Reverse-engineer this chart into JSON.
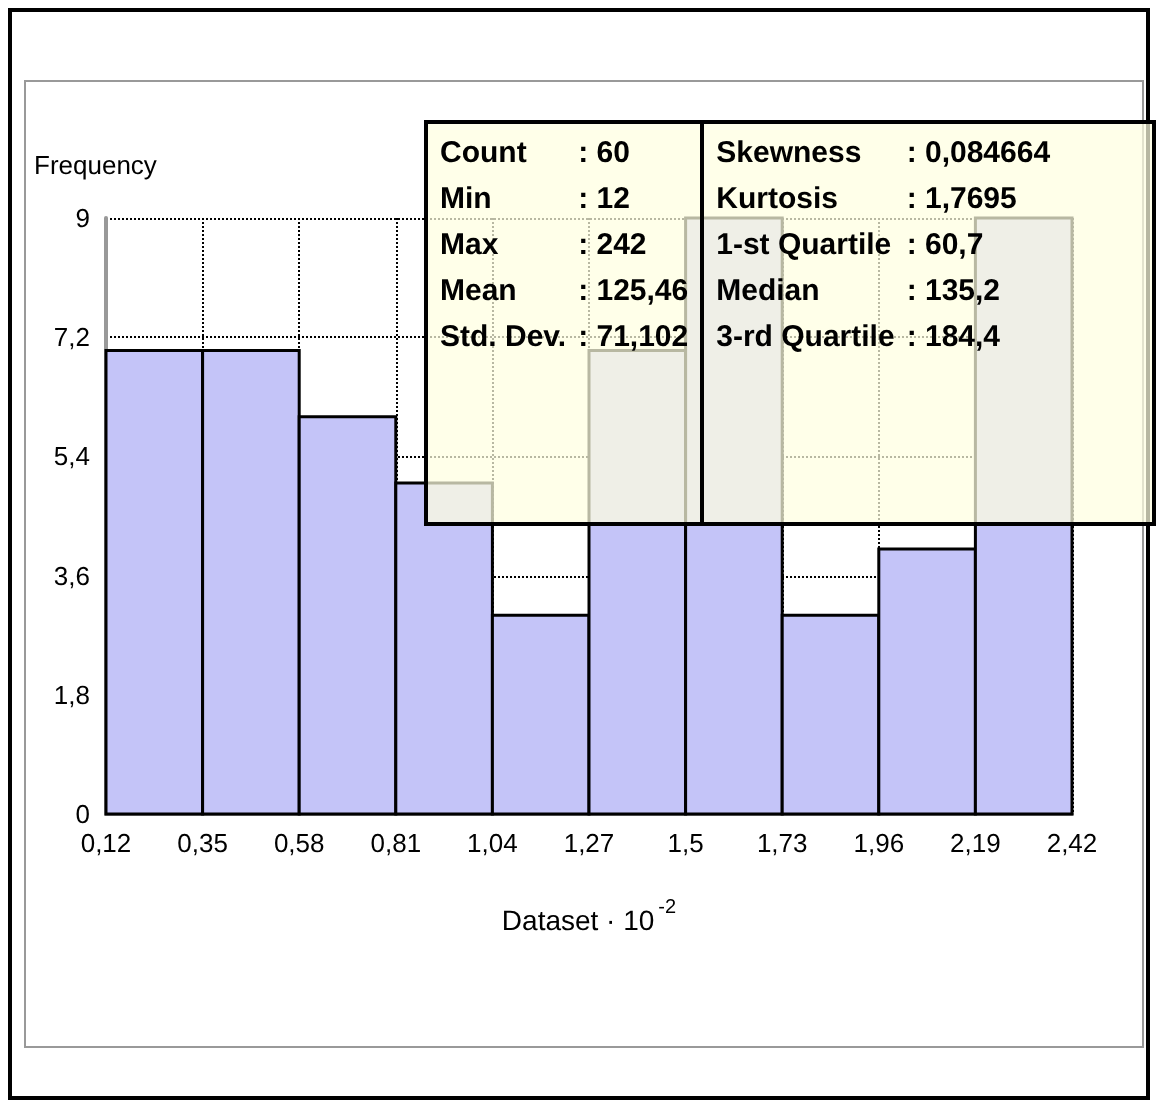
{
  "chart_data": {
    "type": "histogram",
    "bins": [
      0.12,
      0.35,
      0.58,
      0.81,
      1.04,
      1.27,
      1.5,
      1.73,
      1.96,
      2.19,
      2.42
    ],
    "values": [
      7,
      7,
      6,
      5,
      3,
      7,
      9,
      3,
      4,
      9
    ],
    "color": "#c4c4f8",
    "xlabel": "Dataset · 10$^{-2}$",
    "ylabel": "Frequency",
    "xlim": [
      0.12,
      2.42
    ],
    "xticks": [
      {
        "value": 0.12,
        "label": "0,12"
      },
      {
        "value": 0.35,
        "label": "0,35"
      },
      {
        "value": 0.58,
        "label": "0,58"
      },
      {
        "value": 0.81,
        "label": "0,81"
      },
      {
        "value": 1.04,
        "label": "1,04"
      },
      {
        "value": 1.27,
        "label": "1,27"
      },
      {
        "value": 1.5,
        "label": "1,5"
      },
      {
        "value": 1.73,
        "label": "1,73"
      },
      {
        "value": 1.96,
        "label": "1,96"
      },
      {
        "value": 2.19,
        "label": "2,19"
      },
      {
        "value": 2.42,
        "label": "2,42"
      }
    ],
    "ylim": [
      0,
      9
    ],
    "yticks": [
      0,
      {
        "value": 1.8,
        "label": "1,8"
      },
      {
        "value": 3.6,
        "label": "3,6"
      },
      {
        "value": 5.4,
        "label": "5,4"
      },
      {
        "value": 7.2,
        "label": "7,2"
      },
      9
    ],
    "grid": true,
    "line_style": "dotted",
    "annotations": [
      "Count : 60",
      "Min : 12",
      "Max : 242",
      "Mean : 125,46",
      "Std. Dev. : 71,102",
      "Skewness : 0,084664",
      "Kurtosis : 1,7695",
      "1-st Quartile : 60,7",
      "Median : 135,2",
      "3-rd Quartile : 184,4"
    ]
  }
}
